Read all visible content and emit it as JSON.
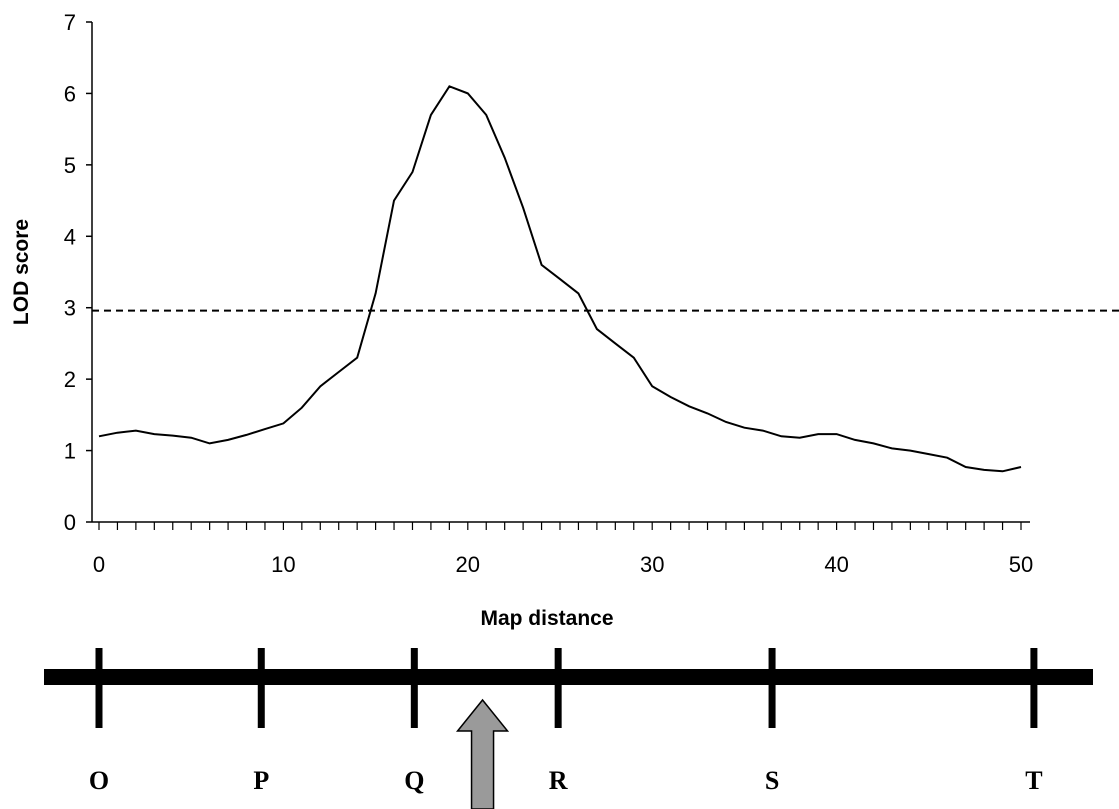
{
  "chart_data": {
    "type": "line",
    "title": "",
    "xlabel": "Map distance",
    "ylabel": "LOD score",
    "xlim": [
      0,
      50
    ],
    "ylim": [
      0,
      7
    ],
    "x_major_ticks": [
      0,
      10,
      20,
      30,
      40,
      50
    ],
    "y_major_ticks": [
      0,
      1,
      2,
      3,
      4,
      5,
      6,
      7
    ],
    "x_minor_step": 1,
    "grid": false,
    "legend": "none",
    "series": [
      {
        "color": "#000000",
        "x": [
          0,
          1,
          2,
          3,
          4,
          5,
          6,
          7,
          8,
          9,
          10,
          11,
          12,
          13,
          14,
          15,
          16,
          17,
          18,
          19,
          20,
          21,
          22,
          23,
          24,
          25,
          26,
          27,
          28,
          29,
          30,
          31,
          32,
          33,
          34,
          35,
          36,
          37,
          38,
          39,
          40,
          41,
          42,
          43,
          44,
          45,
          46,
          47,
          48,
          49,
          50
        ],
        "y": [
          1.2,
          1.25,
          1.28,
          1.23,
          1.21,
          1.18,
          1.1,
          1.15,
          1.22,
          1.3,
          1.38,
          1.6,
          1.9,
          2.1,
          2.3,
          3.2,
          4.5,
          4.9,
          5.7,
          6.1,
          6.0,
          5.7,
          5.1,
          4.4,
          3.6,
          3.4,
          3.2,
          2.7,
          2.5,
          2.3,
          1.9,
          1.75,
          1.62,
          1.52,
          1.4,
          1.32,
          1.28,
          1.2,
          1.18,
          1.23,
          1.23,
          1.15,
          1.1,
          1.03,
          1.0,
          0.95,
          0.9,
          0.77,
          0.73,
          0.71,
          0.77
        ]
      }
    ],
    "threshold": {
      "y": 2.96,
      "style": "dashed",
      "color": "#000000"
    }
  },
  "marker_map": {
    "markers": [
      {
        "label": "O",
        "position": 0
      },
      {
        "label": "P",
        "position": 8.8
      },
      {
        "label": "Q",
        "position": 17.1
      },
      {
        "label": "R",
        "position": 24.9
      },
      {
        "label": "S",
        "position": 36.5
      },
      {
        "label": "T",
        "position": 50.7
      }
    ],
    "arrow_position": 20.8,
    "arrow_color": "#9a9a9a"
  }
}
